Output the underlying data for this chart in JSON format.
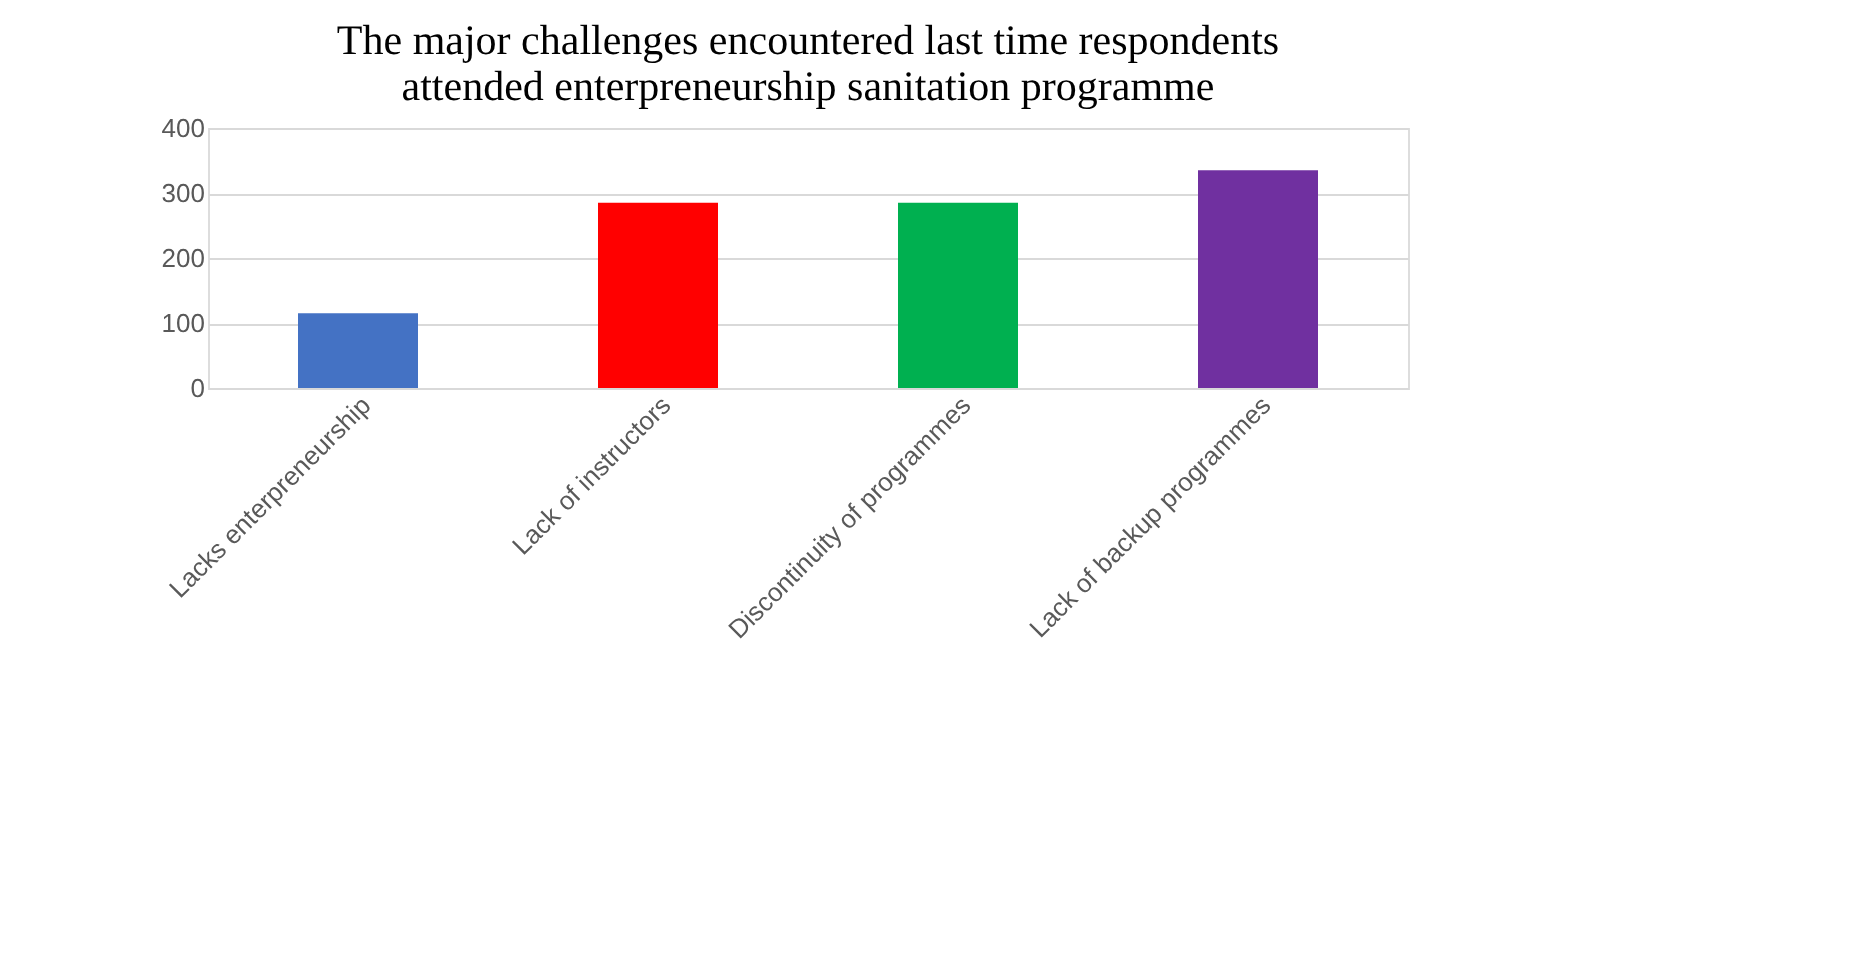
{
  "chart_data": {
    "type": "bar",
    "title": [
      "The major challenges encountered last time respondents",
      "attended enterpreneurship sanitation  programme"
    ],
    "categories": [
      "Lacks enterpreneurship",
      "Lack of instructors",
      "Discontinuity of programmes",
      "Lack of backup programmes"
    ],
    "values": [
      115,
      285,
      285,
      335
    ],
    "colors": [
      "#4472c4",
      "#ff0000",
      "#00b050",
      "#7030a0"
    ],
    "ylim": [
      0,
      400
    ],
    "yticks": [
      0,
      100,
      200,
      300,
      400
    ],
    "grid": "y"
  }
}
